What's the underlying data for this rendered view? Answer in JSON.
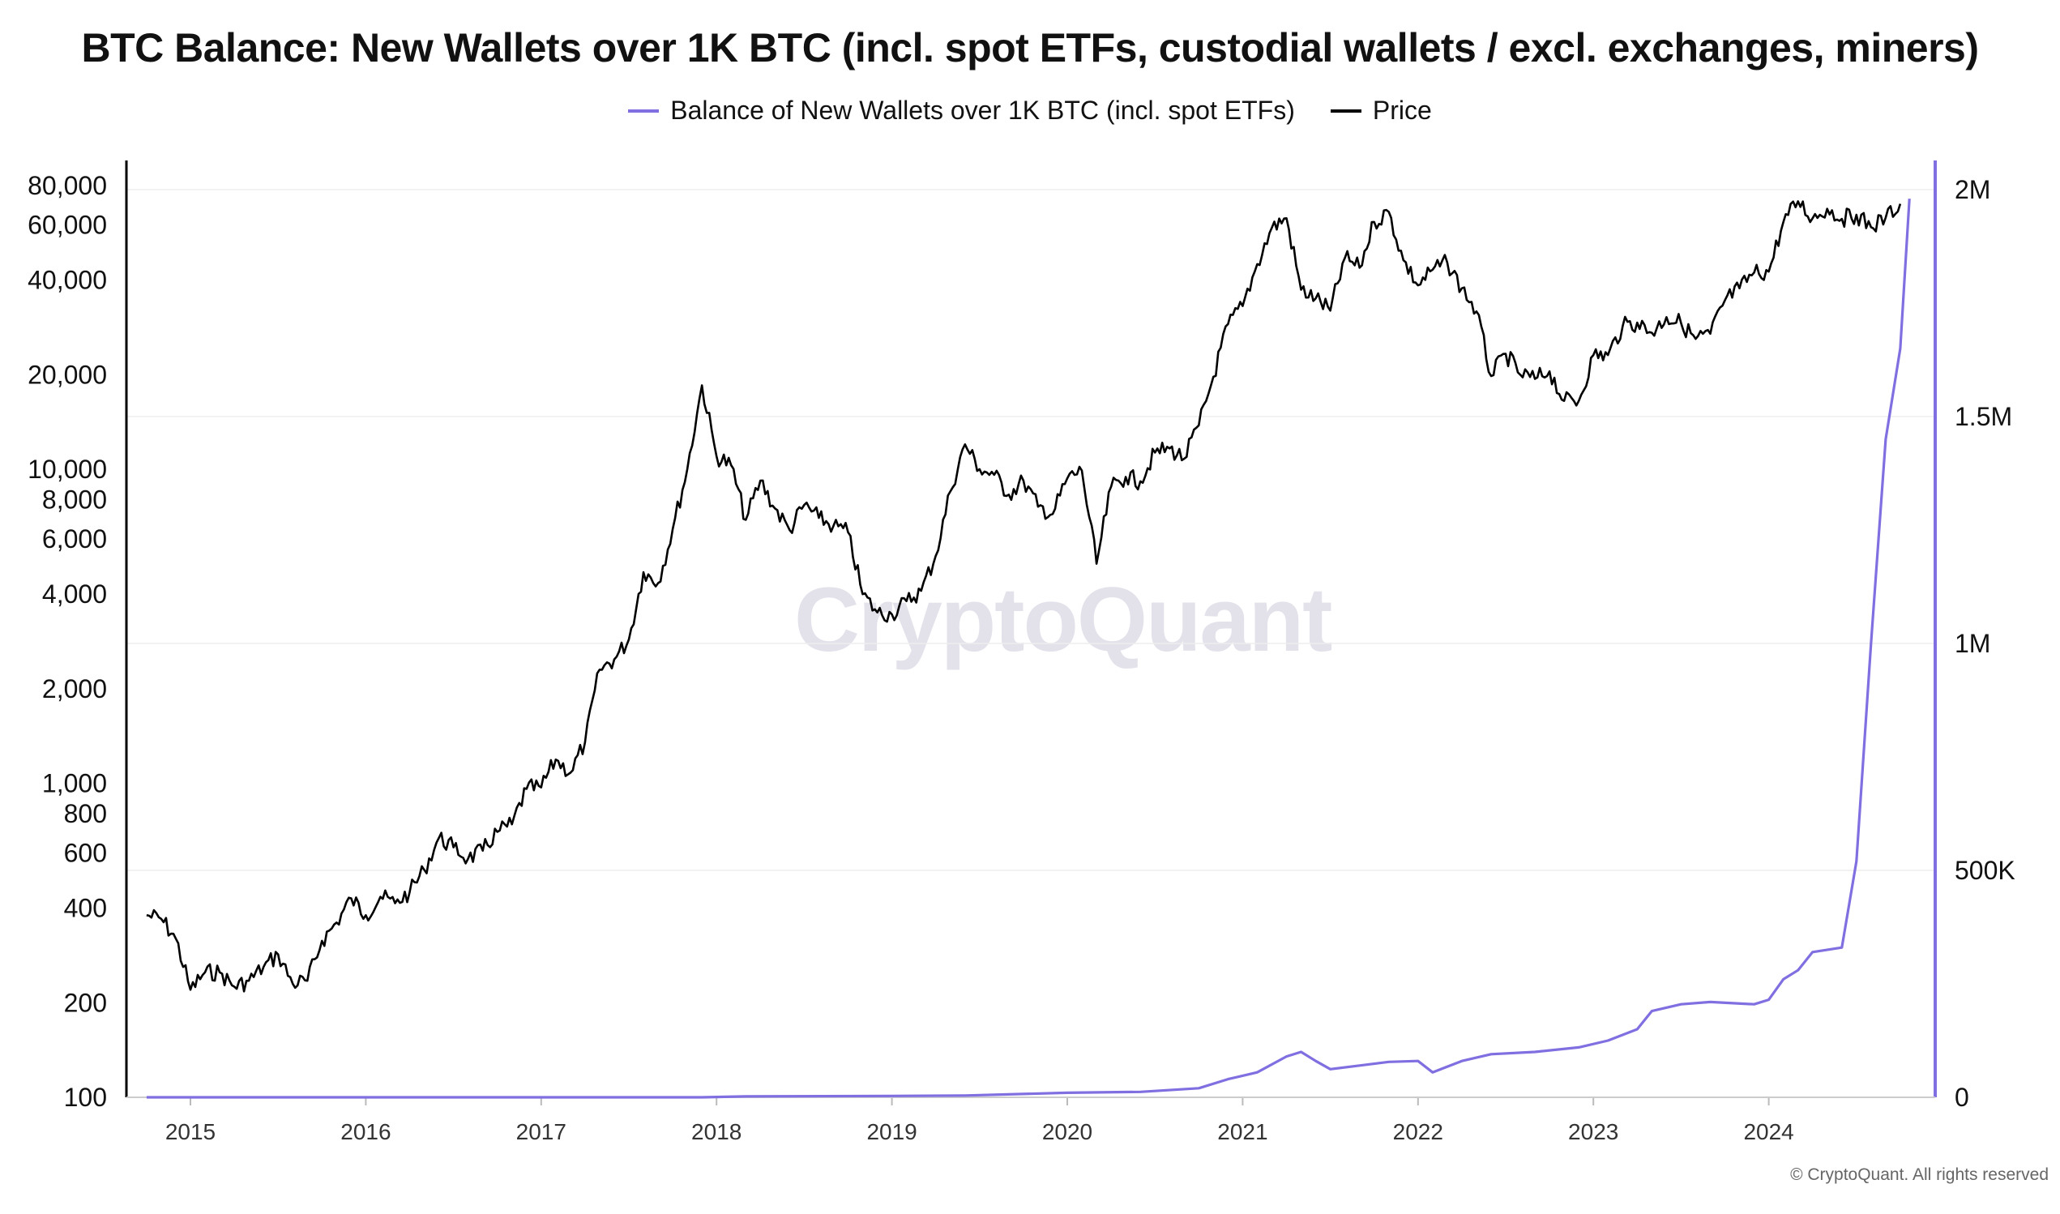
{
  "chart_data": {
    "type": "line",
    "title": "BTC Balance: New Wallets over 1K BTC (incl. spot ETFs, custodial wallets / excl. exchanges, miners)",
    "legend_position": "top",
    "grid": true,
    "x_ticks": [
      "2015",
      "2016",
      "2017",
      "2018",
      "2019",
      "2020",
      "2021",
      "2022",
      "2023",
      "2024"
    ],
    "y_left": {
      "scale": "log",
      "range": [
        100,
        100000
      ],
      "ticks": [
        "80,000",
        "60,000",
        "40,000",
        "20,000",
        "10,000",
        "8,000",
        "6,000",
        "4,000",
        "2,000",
        "1,000",
        "800",
        "600",
        "400",
        "200",
        "100"
      ]
    },
    "y_right": {
      "scale": "linear",
      "range": [
        0,
        2000000
      ],
      "ticks": [
        "2M",
        "1.5M",
        "1M",
        "500K",
        "0"
      ]
    },
    "series": [
      {
        "name": "Balance of New Wallets over 1K BTC (incl. spot ETFs)",
        "axis": "right",
        "color": "#7f6fe0",
        "points": [
          [
            "2014-10",
            0
          ],
          [
            "2017-12",
            0
          ],
          [
            "2018-03",
            2000
          ],
          [
            "2019-01",
            3000
          ],
          [
            "2019-06",
            4000
          ],
          [
            "2020-01",
            10000
          ],
          [
            "2020-06",
            12000
          ],
          [
            "2020-10",
            20000
          ],
          [
            "2020-12",
            40000
          ],
          [
            "2021-02",
            55000
          ],
          [
            "2021-04",
            90000
          ],
          [
            "2021-05",
            100000
          ],
          [
            "2021-06",
            80000
          ],
          [
            "2021-07",
            62000
          ],
          [
            "2021-09",
            70000
          ],
          [
            "2021-11",
            78000
          ],
          [
            "2022-01",
            80000
          ],
          [
            "2022-02",
            55000
          ],
          [
            "2022-04",
            80000
          ],
          [
            "2022-06",
            95000
          ],
          [
            "2022-09",
            100000
          ],
          [
            "2022-12",
            110000
          ],
          [
            "2023-02",
            125000
          ],
          [
            "2023-04",
            150000
          ],
          [
            "2023-05",
            190000
          ],
          [
            "2023-07",
            205000
          ],
          [
            "2023-09",
            210000
          ],
          [
            "2023-12",
            205000
          ],
          [
            "2024-01",
            215000
          ],
          [
            "2024-02",
            260000
          ],
          [
            "2024-03",
            280000
          ],
          [
            "2024-04",
            320000
          ],
          [
            "2024-06",
            330000
          ],
          [
            "2024-07",
            520000
          ],
          [
            "2024-08",
            1000000
          ],
          [
            "2024-09",
            1450000
          ],
          [
            "2024-10",
            1650000
          ],
          [
            "2024-10-20",
            1980000
          ]
        ]
      },
      {
        "name": "Price",
        "axis": "left",
        "color": "#000000",
        "points": [
          [
            "2014-10",
            380
          ],
          [
            "2014-11",
            370
          ],
          [
            "2014-12",
            320
          ],
          [
            "2015-01",
            220
          ],
          [
            "2015-02",
            250
          ],
          [
            "2015-03",
            250
          ],
          [
            "2015-04",
            225
          ],
          [
            "2015-05",
            235
          ],
          [
            "2015-06",
            260
          ],
          [
            "2015-07",
            285
          ],
          [
            "2015-08",
            230
          ],
          [
            "2015-09",
            235
          ],
          [
            "2015-10",
            315
          ],
          [
            "2015-11",
            360
          ],
          [
            "2015-12",
            430
          ],
          [
            "2016-01",
            380
          ],
          [
            "2016-02",
            435
          ],
          [
            "2016-03",
            415
          ],
          [
            "2016-04",
            450
          ],
          [
            "2016-05",
            530
          ],
          [
            "2016-06",
            670
          ],
          [
            "2016-07",
            625
          ],
          [
            "2016-08",
            575
          ],
          [
            "2016-09",
            610
          ],
          [
            "2016-10",
            700
          ],
          [
            "2016-11",
            740
          ],
          [
            "2016-12",
            960
          ],
          [
            "2017-01",
            970
          ],
          [
            "2017-02",
            1190
          ],
          [
            "2017-03",
            1080
          ],
          [
            "2017-04",
            1350
          ],
          [
            "2017-05",
            2300
          ],
          [
            "2017-06",
            2480
          ],
          [
            "2017-07",
            2870
          ],
          [
            "2017-08",
            4700
          ],
          [
            "2017-09",
            4340
          ],
          [
            "2017-10",
            6450
          ],
          [
            "2017-11",
            10000
          ],
          [
            "2017-12",
            18500
          ],
          [
            "2018-01",
            11000
          ],
          [
            "2018-02",
            10300
          ],
          [
            "2018-03",
            6900
          ],
          [
            "2018-04",
            9200
          ],
          [
            "2018-05",
            7500
          ],
          [
            "2018-06",
            6400
          ],
          [
            "2018-07",
            7700
          ],
          [
            "2018-08",
            7000
          ],
          [
            "2018-09",
            6600
          ],
          [
            "2018-10",
            6300
          ],
          [
            "2018-11",
            4000
          ],
          [
            "2018-12",
            3500
          ],
          [
            "2019-01",
            3450
          ],
          [
            "2019-02",
            3800
          ],
          [
            "2019-03",
            4100
          ],
          [
            "2019-04",
            5300
          ],
          [
            "2019-05",
            8500
          ],
          [
            "2019-06",
            12000
          ],
          [
            "2019-07",
            10000
          ],
          [
            "2019-08",
            9600
          ],
          [
            "2019-09",
            8300
          ],
          [
            "2019-10",
            9200
          ],
          [
            "2019-11",
            7600
          ],
          [
            "2019-12",
            7200
          ],
          [
            "2020-01",
            9350
          ],
          [
            "2020-02",
            9900
          ],
          [
            "2020-03",
            5000
          ],
          [
            "2020-04",
            8800
          ],
          [
            "2020-05",
            9450
          ],
          [
            "2020-06",
            9150
          ],
          [
            "2020-07",
            11300
          ],
          [
            "2020-08",
            11650
          ],
          [
            "2020-09",
            10800
          ],
          [
            "2020-10",
            13800
          ],
          [
            "2020-11",
            19700
          ],
          [
            "2020-12",
            29000
          ],
          [
            "2021-01",
            33100
          ],
          [
            "2021-02",
            45000
          ],
          [
            "2021-03",
            58800
          ],
          [
            "2021-04",
            63000
          ],
          [
            "2021-05",
            37300
          ],
          [
            "2021-06",
            35000
          ],
          [
            "2021-07",
            32000
          ],
          [
            "2021-08",
            47100
          ],
          [
            "2021-09",
            43800
          ],
          [
            "2021-10",
            61300
          ],
          [
            "2021-11",
            66000
          ],
          [
            "2021-12",
            46300
          ],
          [
            "2022-01",
            38500
          ],
          [
            "2022-02",
            43200
          ],
          [
            "2022-03",
            45500
          ],
          [
            "2022-04",
            37700
          ],
          [
            "2022-05",
            31800
          ],
          [
            "2022-06",
            19800
          ],
          [
            "2022-07",
            23300
          ],
          [
            "2022-08",
            20000
          ],
          [
            "2022-09",
            19400
          ],
          [
            "2022-10",
            20500
          ],
          [
            "2022-11",
            16500
          ],
          [
            "2022-12",
            16500
          ],
          [
            "2023-01",
            23100
          ],
          [
            "2023-02",
            23100
          ],
          [
            "2023-03",
            28500
          ],
          [
            "2023-04",
            29300
          ],
          [
            "2023-05",
            27200
          ],
          [
            "2023-06",
            30500
          ],
          [
            "2023-07",
            29200
          ],
          [
            "2023-08",
            26000
          ],
          [
            "2023-09",
            27000
          ],
          [
            "2023-10",
            34500
          ],
          [
            "2023-11",
            37700
          ],
          [
            "2023-12",
            42300
          ],
          [
            "2024-01",
            42600
          ],
          [
            "2024-02",
            61200
          ],
          [
            "2024-03",
            71300
          ],
          [
            "2024-04",
            63000
          ],
          [
            "2024-05",
            67500
          ],
          [
            "2024-06",
            62700
          ],
          [
            "2024-07",
            64600
          ],
          [
            "2024-08",
            59000
          ],
          [
            "2024-09",
            63300
          ],
          [
            "2024-10",
            70000
          ]
        ]
      }
    ]
  },
  "watermark": "CryptoQuant",
  "footer": "© CryptoQuant. All rights reserved"
}
